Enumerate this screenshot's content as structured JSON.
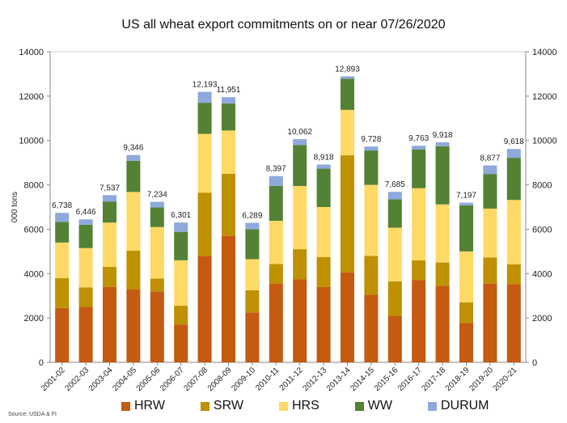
{
  "chart_data": {
    "type": "bar",
    "stacked": true,
    "title": "US all wheat export commitments on or near 07/26/2020",
    "ylabel": "000 tons",
    "ylim": [
      0,
      14000
    ],
    "y_ticks": [
      0,
      2000,
      4000,
      6000,
      8000,
      10000,
      12000,
      14000
    ],
    "secondary_axis_right": true,
    "grid": false,
    "legend_position": "bottom",
    "categories": [
      "2001-02",
      "2002-03",
      "2003-04",
      "2004-05",
      "2005-06",
      "2006-07",
      "2007-08",
      "2008-09",
      "2009-10",
      "2010-11",
      "2011-12",
      "2012-13",
      "2013-14",
      "2014-15",
      "2015-16",
      "2016-17",
      "2017-18",
      "2018-19",
      "2019-20",
      "2020-21"
    ],
    "totals": [
      6738,
      6446,
      7537,
      9346,
      7234,
      6301,
      12193,
      11951,
      6289,
      8397,
      10062,
      8918,
      12893,
      9728,
      7685,
      9763,
      9918,
      7197,
      8877,
      9618
    ],
    "total_labels": [
      "6,738",
      "6,446",
      "7,537",
      "9,346",
      "7,234",
      "6,301",
      "12,193",
      "11,951",
      "6,289",
      "8,397",
      "10,062",
      "8,918",
      "12,893",
      "9,728",
      "7,685",
      "9,763",
      "9,918",
      "7,197",
      "8,877",
      "9,618"
    ],
    "series": [
      {
        "name": "HRW",
        "color": "#C55A11",
        "values": [
          2450,
          2500,
          3400,
          3280,
          3200,
          1700,
          4800,
          5700,
          2250,
          3550,
          3750,
          3400,
          4050,
          3050,
          2100,
          3700,
          3450,
          1780,
          3550,
          3520
        ]
      },
      {
        "name": "SRW",
        "color": "#BF9000",
        "values": [
          1350,
          880,
          900,
          1750,
          580,
          850,
          2850,
          2800,
          1000,
          880,
          1350,
          1350,
          5280,
          1750,
          1550,
          900,
          1050,
          920,
          1180,
          900
        ]
      },
      {
        "name": "HRS",
        "color": "#FFD966",
        "values": [
          1600,
          1770,
          2000,
          2650,
          2320,
          2050,
          2650,
          1950,
          1400,
          1950,
          2850,
          2250,
          2050,
          3200,
          2420,
          3250,
          2620,
          2300,
          2200,
          2900
        ]
      },
      {
        "name": "WW",
        "color": "#548235",
        "values": [
          930,
          1050,
          950,
          1400,
          880,
          1280,
          1400,
          1220,
          1350,
          1570,
          1850,
          1730,
          1400,
          1550,
          1280,
          1750,
          2620,
          2080,
          1560,
          1900
        ]
      },
      {
        "name": "DURUM",
        "color": "#8EA9DB",
        "values": [
          408,
          246,
          287,
          266,
          254,
          421,
          493,
          281,
          289,
          447,
          262,
          188,
          113,
          178,
          335,
          163,
          178,
          117,
          387,
          398
        ]
      }
    ]
  },
  "source_note": "Source: USDA & FI"
}
